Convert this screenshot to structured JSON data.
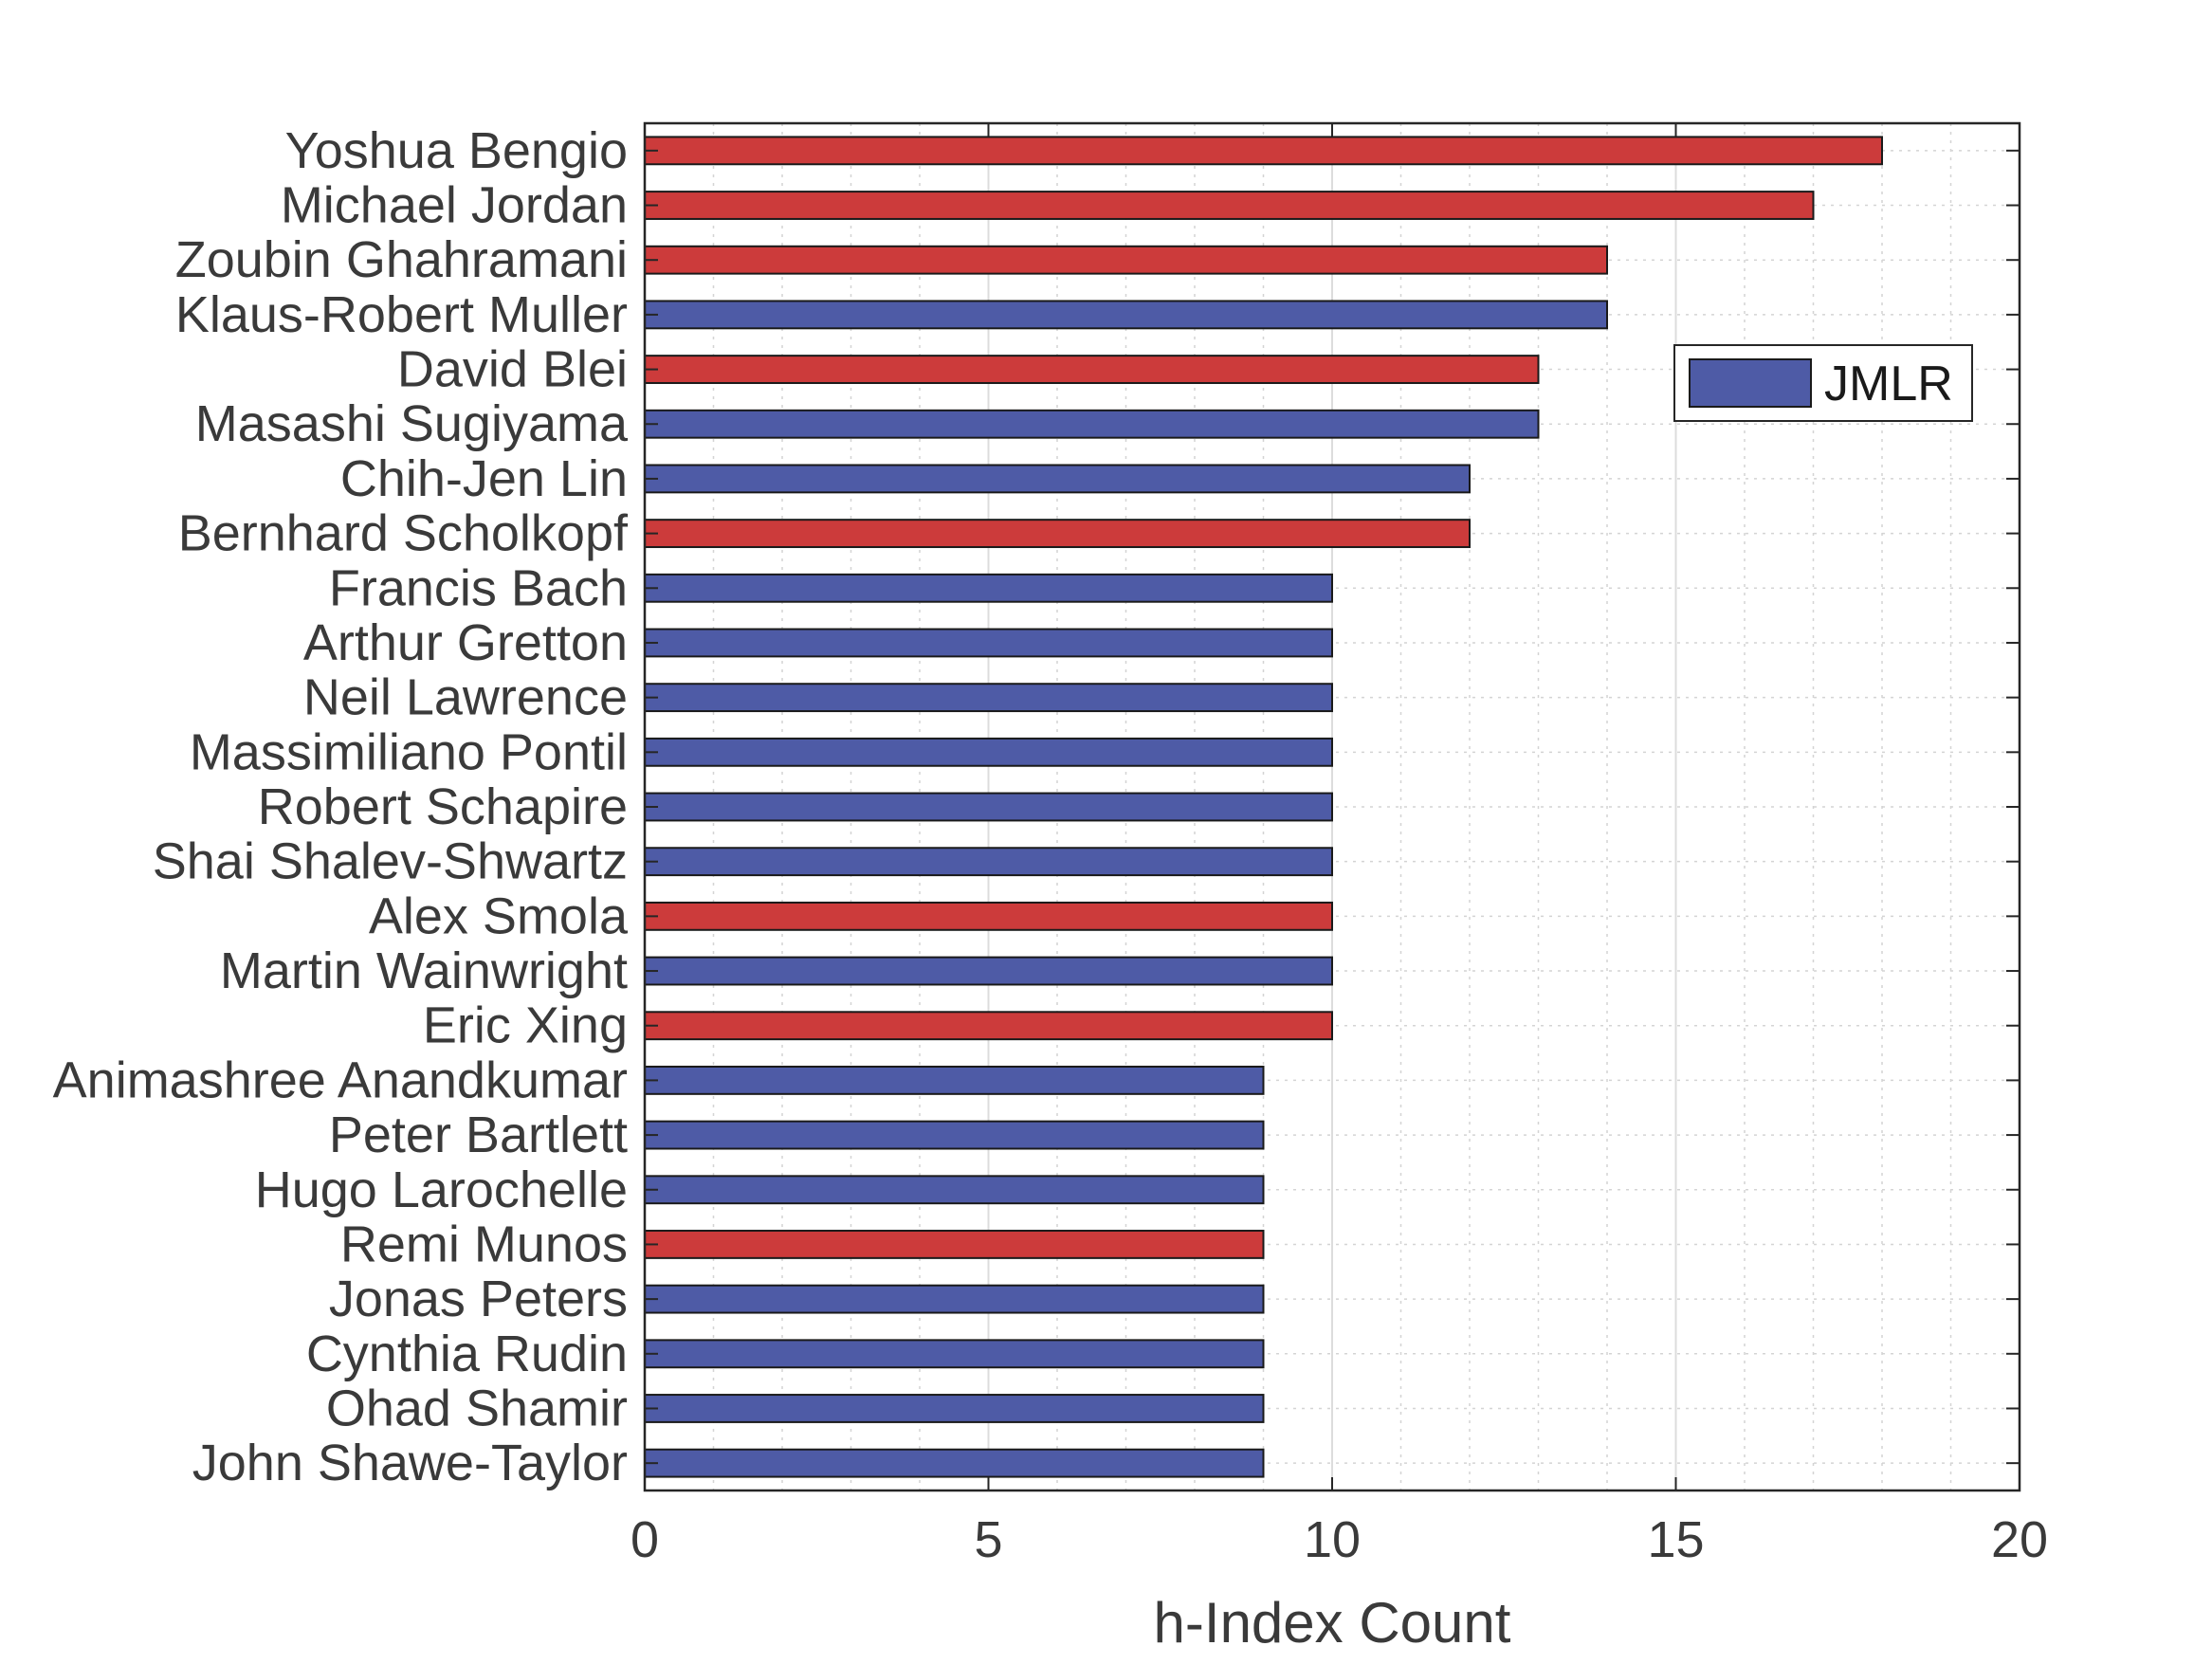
{
  "chart_data": {
    "type": "bar",
    "orientation": "horizontal",
    "title": "",
    "xlabel": "h-Index Count",
    "ylabel": "",
    "xlim": [
      0,
      20
    ],
    "xticks": [
      0,
      5,
      10,
      15,
      20
    ],
    "grid": true,
    "legend": {
      "position": "top-right",
      "entries": [
        {
          "label": "JMLR",
          "color": "#4e5ba6"
        }
      ]
    },
    "colors": {
      "blue": "#4e5ba6",
      "red": "#cc3b3b"
    },
    "categories": [
      "Yoshua Bengio",
      "Michael Jordan",
      "Zoubin Ghahramani",
      "Klaus-Robert Muller",
      "David Blei",
      "Masashi Sugiyama",
      "Chih-Jen Lin",
      "Bernhard Scholkopf",
      "Francis Bach",
      "Arthur Gretton",
      "Neil Lawrence",
      "Massimiliano Pontil",
      "Robert Schapire",
      "Shai Shalev-Shwartz",
      "Alex Smola",
      "Martin Wainwright",
      "Eric Xing",
      "Animashree Anandkumar",
      "Peter Bartlett",
      "Hugo Larochelle",
      "Remi Munos",
      "Jonas Peters",
      "Cynthia Rudin",
      "Ohad Shamir",
      "John Shawe-Taylor"
    ],
    "values": [
      18,
      17,
      14,
      14,
      13,
      13,
      12,
      12,
      10,
      10,
      10,
      10,
      10,
      10,
      10,
      10,
      10,
      9,
      9,
      9,
      9,
      9,
      9,
      9,
      9
    ],
    "bar_colors": [
      "red",
      "red",
      "red",
      "blue",
      "red",
      "blue",
      "blue",
      "red",
      "blue",
      "blue",
      "blue",
      "blue",
      "blue",
      "blue",
      "red",
      "blue",
      "red",
      "blue",
      "blue",
      "blue",
      "red",
      "blue",
      "blue",
      "blue",
      "blue"
    ]
  }
}
